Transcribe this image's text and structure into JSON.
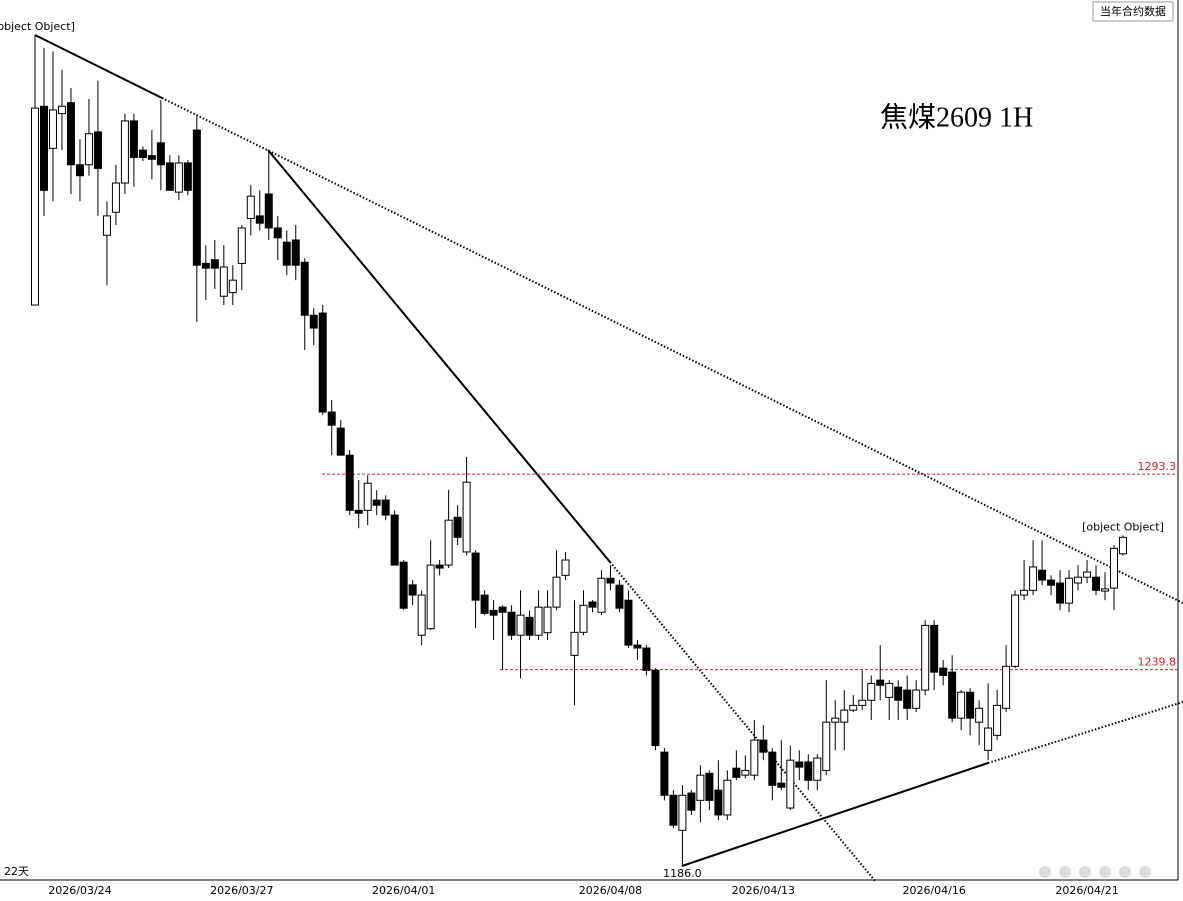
{
  "chart_data": {
    "type": "candlestick",
    "title": "焦煤2609  1H",
    "header_text": "当年合约数据",
    "period_label": "22天",
    "categories": [
      null,
      null,
      null,
      null,
      null,
      "2026/03/24",
      null,
      null,
      null,
      null,
      null,
      null,
      null,
      null,
      null,
      null,
      null,
      null,
      null,
      null,
      null,
      null,
      null,
      "2026/03/27",
      null,
      null,
      null,
      null,
      null,
      null,
      null,
      null,
      null,
      null,
      null,
      null,
      null,
      null,
      null,
      null,
      null,
      "2026/04/01",
      null,
      null,
      null,
      null,
      null,
      null,
      null,
      null,
      null,
      null,
      null,
      null,
      null,
      null,
      null,
      null,
      null,
      null,
      null,
      null,
      null,
      null,
      "2026/04/08",
      null,
      null,
      null,
      null,
      null,
      null,
      null,
      null,
      null,
      null,
      null,
      null,
      null,
      null,
      null,
      null,
      "2026/04/13",
      null,
      null,
      null,
      null,
      null,
      null,
      null,
      null,
      null,
      null,
      null,
      null,
      null,
      null,
      null,
      null,
      null,
      null,
      "2026/04/16",
      null,
      null,
      null,
      null,
      null,
      null,
      null,
      null,
      null,
      null,
      null,
      null,
      null,
      null,
      null,
      null,
      "2026/04/21",
      null,
      null,
      null,
      null
    ],
    "open": [
      1339.6,
      1394,
      1382.5,
      1392,
      1395,
      1378,
      1378,
      1387,
      1358.7,
      1365,
      1373,
      1390,
      1382,
      1380.5,
      1384,
      1378.5,
      1370.5,
      1378.5,
      1387.5,
      1351,
      1352,
      1342,
      1343,
      1351,
      1363.3,
      1364,
      1370,
      1360.7,
      1356.8,
      1357.4,
      1351.3,
      1336.8,
      1337.4,
      1310.3,
      1305.9,
      1298.5,
      1283.4,
      1283.4,
      1286.2,
      1286.2,
      1282.1,
      1269.2,
      1263,
      1249.2,
      1251,
      1268.4,
      1268.4,
      1281.5,
      1272,
      1271.7,
      1260.2,
      1256,
      1256.9,
      1255.5,
      1249.2,
      1254.1,
      1249.2,
      1249.9,
      1256.9,
      1265.6,
      1243.7,
      1250,
      1258.3,
      1255.5,
      1264.8,
      1262.9,
      1258.8,
      1246.5,
      1245.7,
      1239.6,
      1217.2,
      1205.4,
      1195.8,
      1206,
      1204,
      1211.4,
      1206.8,
      1200,
      1212.8,
      1210.9,
      1210.9,
      1220.5,
      1217.2,
      1208.7,
      1201.9,
      1214.5,
      1214.5,
      1209.5,
      1212.2,
      1225.4,
      1225.4,
      1228.7,
      1230,
      1231.4,
      1236.9,
      1232.2,
      1235,
      1234.2,
      1229.2,
      1234.2,
      1251.9,
      1240.2,
      1239.1,
      1226.5,
      1233.6,
      1225.4,
      1217.7,
      1221.8,
      1229.2,
      1240.7,
      1260.2,
      1261.5,
      1267,
      1264.3,
      1263.5,
      1258,
      1263.5,
      1265.1,
      1265.1,
      1261.3,
      1262.1,
      1271.5
    ],
    "high": [
      1413.5,
      1410,
      1409,
      1404,
      1399,
      1385,
      1396,
      1401,
      1368,
      1378,
      1392,
      1392,
      1383,
      1387.5,
      1395.7,
      1380.6,
      1380.6,
      1379.3,
      1391.6,
      1356,
      1357.4,
      1356,
      1350.5,
      1361.5,
      1372.4,
      1371,
      1382,
      1364,
      1360,
      1361.5,
      1352.4,
      1338.7,
      1339.6,
      1313.6,
      1308.1,
      1299.9,
      1291.7,
      1293,
      1288.9,
      1287.5,
      1283.4,
      1269.8,
      1264.3,
      1261.5,
      1275.2,
      1269.8,
      1289,
      1284.8,
      1298,
      1272.5,
      1261.5,
      1258.8,
      1257.4,
      1257.4,
      1261.5,
      1256,
      1261.5,
      1261.5,
      1272.5,
      1272,
      1258.8,
      1261.5,
      1258.8,
      1267,
      1268.4,
      1264.3,
      1261.5,
      1247.9,
      1246.5,
      1240.2,
      1218.3,
      1206.8,
      1208.2,
      1206.8,
      1213.6,
      1212.2,
      1215,
      1212.2,
      1217.7,
      1216.3,
      1226,
      1224.6,
      1218.3,
      1220.5,
      1219,
      1217.7,
      1216.6,
      1216.6,
      1236.9,
      1231.4,
      1234.2,
      1232.8,
      1239.6,
      1238.2,
      1246.5,
      1236.9,
      1236.9,
      1238.2,
      1236.9,
      1253.3,
      1253.3,
      1242.4,
      1243.7,
      1234.2,
      1234.7,
      1231.4,
      1236,
      1234.2,
      1246.5,
      1261.5,
      1269.8,
      1275.2,
      1275.2,
      1265.6,
      1267,
      1267,
      1268.4,
      1269.8,
      1268.4,
      1266.5,
      1273.9,
      1276.5
    ],
    "low": [
      1339.6,
      1364,
      1368,
      1382,
      1370,
      1368,
      1375,
      1364,
      1345,
      1361.5,
      1370,
      1372,
      1379,
      1374,
      1371,
      1371,
      1368.3,
      1369.7,
      1335,
      1341,
      1344,
      1339.6,
      1339.6,
      1343.7,
      1358.7,
      1360,
      1357.4,
      1351.9,
      1347.8,
      1346.4,
      1327.3,
      1328.6,
      1309.5,
      1298.5,
      1298.5,
      1282.1,
      1278.5,
      1279.3,
      1282.1,
      1280.7,
      1268.4,
      1256.1,
      1257.4,
      1246.5,
      1250.6,
      1265.6,
      1267.6,
      1273.9,
      1271.1,
      1251.1,
      1254.7,
      1247.9,
      1239.7,
      1247.9,
      1237.4,
      1247.9,
      1247.9,
      1247.9,
      1256.1,
      1264.3,
      1230,
      1249.2,
      1255.5,
      1254.7,
      1261.5,
      1255.5,
      1245.7,
      1242.4,
      1238.2,
      1217.7,
      1204,
      1196.4,
      1186,
      1200,
      1198,
      1201.3,
      1198.6,
      1198.6,
      1209.5,
      1210,
      1209.5,
      1215,
      1204,
      1206.8,
      1201.3,
      1209.5,
      1206.8,
      1206.8,
      1210.9,
      1217.7,
      1217.7,
      1228.2,
      1228.7,
      1226,
      1231.4,
      1226,
      1226,
      1226,
      1228.2,
      1232.8,
      1234.2,
      1235.5,
      1225.4,
      1223.2,
      1221.8,
      1219.1,
      1215,
      1220.5,
      1228.2,
      1240.2,
      1258.8,
      1260.2,
      1262.9,
      1260.2,
      1256.1,
      1255.5,
      1261.5,
      1263.5,
      1260.2,
      1258.8,
      1256.1,
      1271
    ],
    "close": [
      1393.5,
      1371,
      1393,
      1394,
      1378,
      1375,
      1386.5,
      1377,
      1364,
      1373,
      1390,
      1380,
      1380,
      1379.5,
      1378,
      1371,
      1378.5,
      1371,
      1350.5,
      1349.7,
      1349.7,
      1350,
      1346.4,
      1360.7,
      1369.4,
      1362,
      1360.7,
      1358,
      1350.5,
      1350.5,
      1336.8,
      1333.3,
      1310.3,
      1306.7,
      1298.5,
      1283.4,
      1282.6,
      1290.8,
      1284.8,
      1282.1,
      1268.4,
      1256.6,
      1260.2,
      1260.2,
      1268.4,
      1267.6,
      1280.7,
      1276,
      1291.1,
      1258.8,
      1255.2,
      1254.7,
      1255.5,
      1249.2,
      1254.7,
      1249.2,
      1256.9,
      1256.9,
      1265.1,
      1269.8,
      1250,
      1257.4,
      1256.9,
      1264.8,
      1263.5,
      1256.6,
      1246.5,
      1245.7,
      1239.6,
      1219,
      1205.4,
      1197.2,
      1205.4,
      1201.3,
      1210.9,
      1204,
      1200,
      1209.5,
      1210.3,
      1212.2,
      1220.5,
      1217.2,
      1208.1,
      1207.6,
      1215,
      1213.1,
      1209.5,
      1215.6,
      1225.4,
      1226.5,
      1228.7,
      1230,
      1231.4,
      1236,
      1235.5,
      1236,
      1231.4,
      1229.2,
      1234.2,
      1251.9,
      1239.1,
      1238.2,
      1226.5,
      1233.6,
      1226.5,
      1229.2,
      1223.8,
      1230,
      1240.7,
      1260.2,
      1261.5,
      1267.9,
      1264.3,
      1262.9,
      1258,
      1264.8,
      1265.1,
      1266.5,
      1261.5,
      1261.9,
      1273,
      1276
    ],
    "ylim": [
      1182.2,
      1423.1
    ],
    "up_color": "#ffffff",
    "down_color": "#000000",
    "reference_lines": [
      {
        "value": 1293.3,
        "color": "#e02020"
      },
      {
        "value": 1239.8,
        "color": "#e02020"
      }
    ],
    "annotations": [
      {
        "value": 1413.5
      },
      {
        "value": 1186,
        "label": "1186.0"
      },
      {
        "value": 1276.5
      }
    ]
  }
}
